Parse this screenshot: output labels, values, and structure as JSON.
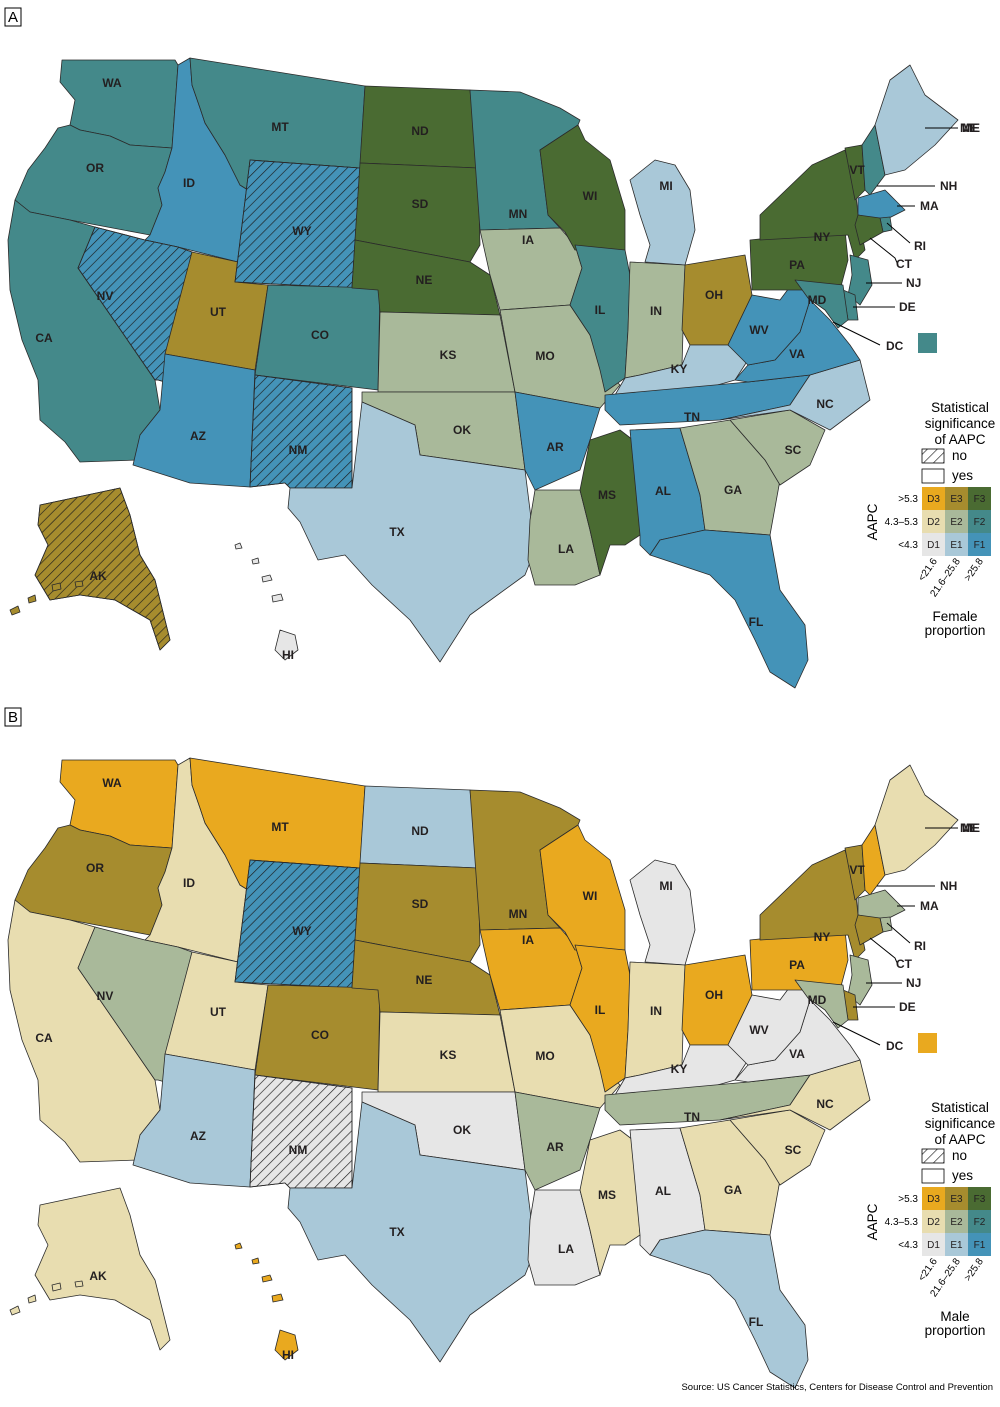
{
  "colors": {
    "D1": "#e6e6e6",
    "D2": "#e8ddb0",
    "D3": "#e9a91f",
    "E1": "#a9c8d8",
    "E2": "#a9b99a",
    "E3": "#a68c2e",
    "F1": "#4493b8",
    "F2": "#44898a",
    "F3": "#4a6b32"
  },
  "legend": {
    "significance_title": [
      "Statistical",
      "significance",
      "of AAPC"
    ],
    "no_label": "no",
    "yes_label": "yes",
    "aapc_label": "AAPC",
    "row_labels": [
      ">5.3",
      "4.3–5.3",
      "<4.3"
    ],
    "col_labels": [
      "<21.6",
      "21.6–25.8",
      ">25.8"
    ],
    "cells": [
      [
        "D3",
        "E3",
        "F3"
      ],
      [
        "D2",
        "E2",
        "F2"
      ],
      [
        "D1",
        "E1",
        "F1"
      ]
    ]
  },
  "panels": [
    {
      "tag": "A",
      "proportion_title": [
        "Female",
        "proportion"
      ],
      "dc_class": "F2",
      "states": {
        "WA": "F2",
        "OR": "F2",
        "CA": "F2",
        "ID": "F1",
        "NV": "F1",
        "UT": "E3",
        "AZ": "F1",
        "MT": "F2",
        "WY": "F1",
        "CO": "F2",
        "NM": "F1",
        "ND": "F3",
        "SD": "F3",
        "NE": "F3",
        "KS": "E2",
        "OK": "E2",
        "TX": "E1",
        "MN": "F2",
        "IA": "E2",
        "MO": "E2",
        "AR": "F1",
        "LA": "E2",
        "WI": "F3",
        "IL": "F2",
        "MI": "E1",
        "IN": "E2",
        "OH": "E3",
        "KY": "E1",
        "TN": "F1",
        "MS": "F3",
        "AL": "F1",
        "GA": "E2",
        "FL": "F1",
        "SC": "E2",
        "NC": "E1",
        "VA": "F1",
        "WV": "F1",
        "PA": "F3",
        "NY": "F3",
        "VT": "F3",
        "NH": "F2",
        "ME": "E1",
        "MA": "F1",
        "RI": "F2",
        "CT": "F3",
        "NJ": "F2",
        "DE": "F2",
        "MD": "F2",
        "AK": "E3",
        "HI": "D1"
      },
      "hatched": [
        "NV",
        "WY",
        "NM",
        "AK"
      ]
    },
    {
      "tag": "B",
      "proportion_title": [
        "Male",
        "proportion"
      ],
      "dc_class": "D3",
      "states": {
        "WA": "D3",
        "OR": "E3",
        "CA": "D2",
        "ID": "D2",
        "NV": "E2",
        "UT": "D2",
        "AZ": "E1",
        "MT": "D3",
        "WY": "F1",
        "CO": "E3",
        "NM": "D1",
        "ND": "E1",
        "SD": "E3",
        "NE": "E3",
        "KS": "D2",
        "OK": "D1",
        "TX": "E1",
        "MN": "E3",
        "IA": "D3",
        "MO": "D2",
        "AR": "E2",
        "LA": "D1",
        "WI": "D3",
        "IL": "D3",
        "MI": "D1",
        "IN": "D2",
        "OH": "D3",
        "KY": "D1",
        "TN": "E2",
        "MS": "D2",
        "AL": "D1",
        "GA": "D2",
        "FL": "E1",
        "SC": "D2",
        "NC": "D2",
        "VA": "D1",
        "WV": "D1",
        "PA": "D3",
        "NY": "E3",
        "VT": "E3",
        "NH": "D3",
        "ME": "D2",
        "MA": "E2",
        "RI": "E2",
        "CT": "E3",
        "NJ": "E2",
        "DE": "E3",
        "MD": "E2",
        "AK": "D2",
        "HI": "D3"
      },
      "hatched": [
        "WY",
        "NM"
      ]
    }
  ],
  "state_labels": [
    "WA",
    "OR",
    "CA",
    "ID",
    "NV",
    "UT",
    "AZ",
    "MT",
    "WY",
    "CO",
    "NM",
    "ND",
    "SD",
    "NE",
    "KS",
    "OK",
    "TX",
    "MN",
    "IA",
    "MO",
    "AR",
    "LA",
    "WI",
    "IL",
    "MI",
    "IN",
    "OH",
    "KY",
    "TN",
    "MS",
    "AL",
    "GA",
    "FL",
    "SC",
    "NC",
    "VA",
    "WV",
    "PA",
    "NY",
    "VT",
    "ME",
    "AK",
    "HI"
  ],
  "callout_labels": [
    "ME",
    "NH",
    "MA",
    "RI",
    "CT",
    "NJ",
    "DE",
    "DC",
    "MD"
  ],
  "source": "Source: US Cancer Statistics, Centers for Disease Control and Prevention"
}
